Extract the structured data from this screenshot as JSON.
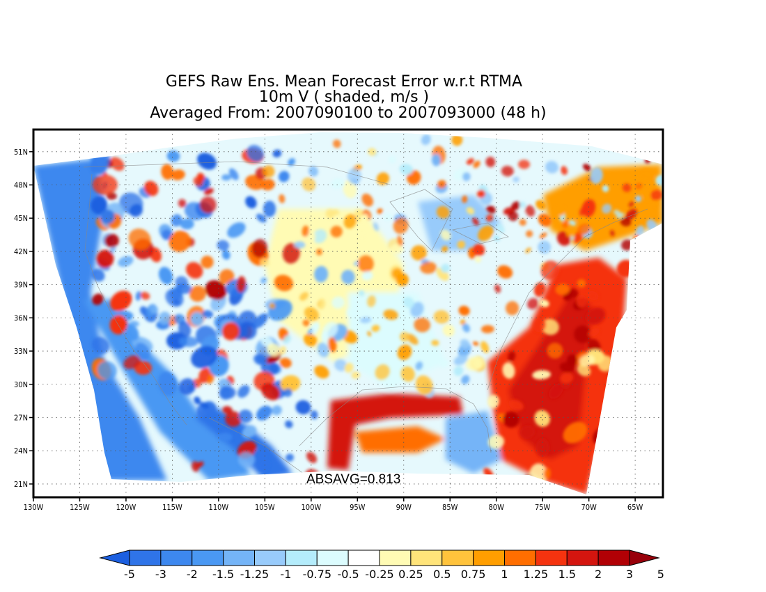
{
  "title": {
    "line1": "GEFS Raw Ens. Mean Forecast Error w.r.t RTMA",
    "line2": "10m V ( shaded, m/s )",
    "line3": "Averaged From: 2007090100 to 2007093000 (48 h)"
  },
  "annotation": "ABSAVG=0.813",
  "map": {
    "lon_range": [
      -130,
      -62
    ],
    "lat_range": [
      19.8,
      53
    ],
    "lat_ticks": [
      21,
      24,
      27,
      30,
      33,
      36,
      39,
      42,
      45,
      48,
      51
    ],
    "lon_ticks": [
      -130,
      -125,
      -120,
      -115,
      -110,
      -105,
      -100,
      -95,
      -90,
      -85,
      -80,
      -75,
      -70,
      -65
    ],
    "lat_labels": [
      "21N",
      "24N",
      "27N",
      "30N",
      "33N",
      "36N",
      "39N",
      "42N",
      "45N",
      "48N",
      "51N"
    ],
    "lon_labels": [
      "130W",
      "125W",
      "120W",
      "115W",
      "110W",
      "105W",
      "100W",
      "95W",
      "90W",
      "85W",
      "80W",
      "75W",
      "70W",
      "65W"
    ],
    "grid": "dotted"
  },
  "colorbar": {
    "levels": [
      "-5",
      "-3",
      "-2",
      "-1.5",
      "-1.25",
      "-1",
      "-0.75",
      "-0.5",
      "-0.25",
      "0.25",
      "0.5",
      "0.75",
      "1",
      "1.25",
      "1.5",
      "2",
      "3",
      "5"
    ],
    "colors": [
      "#1c5fe0",
      "#2f74e8",
      "#3d88ef",
      "#4a98f3",
      "#74b4f7",
      "#98cbfb",
      "#b4ecfb",
      "#dcfcfe",
      "#ffffff",
      "#fffbb4",
      "#ffe47a",
      "#ffc33c",
      "#ff9e00",
      "#ff6e00",
      "#f5330f",
      "#d4150f",
      "#b10005",
      "#98000a"
    ]
  }
}
